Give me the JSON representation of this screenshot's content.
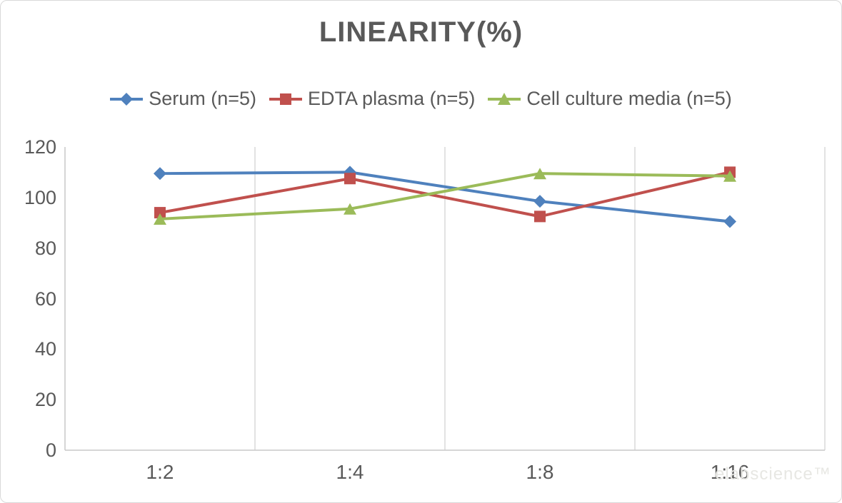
{
  "chart_data": {
    "type": "line",
    "title": "LINEARITY(%)",
    "categories": [
      "1:2",
      "1:4",
      "1:8",
      "1:16"
    ],
    "y_ticks": [
      0,
      20,
      40,
      60,
      80,
      100,
      120
    ],
    "ylim": [
      0,
      120
    ],
    "grid": "vertical-only",
    "legend_position": "top-center",
    "grid_color": "#d9d9d9",
    "axis_color": "#c9c9c9",
    "text_color": "#595959",
    "series": [
      {
        "name": "Serum (n=5)",
        "color": "#4F81BD",
        "marker": "diamond",
        "values": [
          109.5,
          110,
          98.5,
          90.5
        ]
      },
      {
        "name": "EDTA plasma (n=5)",
        "color": "#C0504D",
        "marker": "square",
        "values": [
          94,
          107.5,
          92.5,
          110
        ]
      },
      {
        "name": "Cell culture media (n=5)",
        "color": "#9BBB59",
        "marker": "triangle",
        "values": [
          91.5,
          95.5,
          109.5,
          108.5
        ]
      }
    ]
  },
  "watermark": "elabscience™"
}
